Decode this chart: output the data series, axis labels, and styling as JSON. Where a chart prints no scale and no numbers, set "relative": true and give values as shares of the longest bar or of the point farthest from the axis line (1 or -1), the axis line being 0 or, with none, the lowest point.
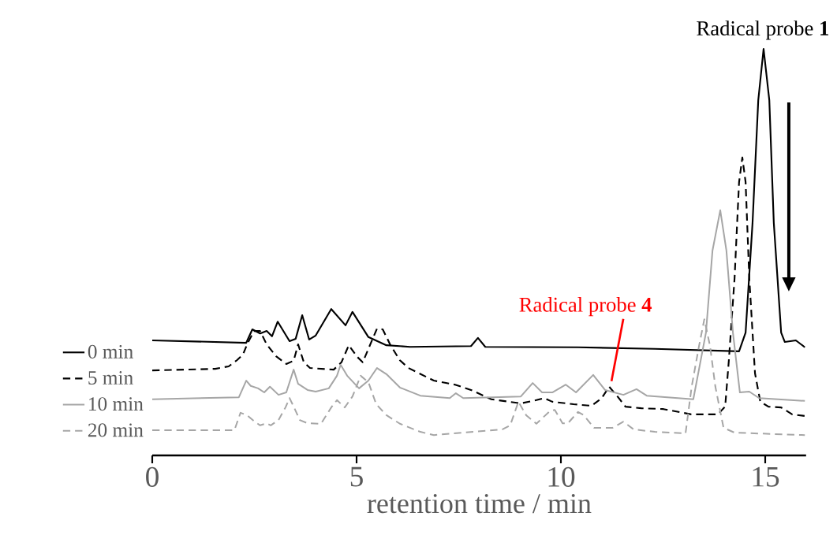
{
  "chart_data": {
    "type": "line",
    "relative": true,
    "xlabel": "retention time / min",
    "xlim": [
      0,
      16
    ],
    "xticks": [
      0,
      5,
      10,
      15
    ],
    "legend": "left",
    "annotations": [
      {
        "text": "Radical probe **1**",
        "x": 14.96,
        "y": 1
      },
      {
        "text": "Radical probe **4**",
        "x": 11.18,
        "y": 0.169
      }
    ],
    "series": [
      {
        "name": "0 min",
        "color": "#000000",
        "line_style": "solid",
        "x": [
          0,
          2.3,
          2.45,
          2.64,
          2.8,
          2.93,
          3.07,
          3.36,
          3.51,
          3.67,
          3.84,
          4.0,
          4.38,
          4.73,
          4.9,
          5.29,
          5.73,
          6.31,
          7.8,
          7.97,
          8.15,
          10.42,
          12.3,
          14.36,
          14.52,
          14.69,
          14.83,
          14.96,
          15.1,
          15.21,
          15.39,
          15.48,
          15.75,
          15.97
        ],
        "values": [
          0.283,
          0.277,
          0.31,
          0.3,
          0.306,
          0.293,
          0.329,
          0.281,
          0.287,
          0.345,
          0.285,
          0.295,
          0.36,
          0.32,
          0.353,
          0.291,
          0.271,
          0.267,
          0.269,
          0.289,
          0.267,
          0.266,
          0.262,
          0.256,
          0.302,
          0.572,
          0.874,
          1,
          0.874,
          0.572,
          0.302,
          0.279,
          0.283,
          0.266
        ]
      },
      {
        "name": "5 min",
        "color": "#000000",
        "line_style": "dashed",
        "x": [
          0,
          1.54,
          1.87,
          2.07,
          2.22,
          2.32,
          2.49,
          2.64,
          2.8,
          3.03,
          3.28,
          3.46,
          3.57,
          3.71,
          3.86,
          4.44,
          4.63,
          4.81,
          5.02,
          5.15,
          5.31,
          5.5,
          5.64,
          5.83,
          6.06,
          6.27,
          6.89,
          7.41,
          7.8,
          8.3,
          9.02,
          9.4,
          9.59,
          9.79,
          10.31,
          10.75,
          11.0,
          11.18,
          11.37,
          11.58,
          11.97,
          12.51,
          13.19,
          13.84,
          14.02,
          14.11,
          14.25,
          14.36,
          14.44,
          14.52,
          14.61,
          14.75,
          14.88,
          15.08,
          15.39,
          15.66,
          15.97
        ],
        "values": [
          0.209,
          0.213,
          0.219,
          0.234,
          0.248,
          0.273,
          0.306,
          0.306,
          0.273,
          0.244,
          0.225,
          0.233,
          0.273,
          0.229,
          0.215,
          0.211,
          0.229,
          0.271,
          0.242,
          0.229,
          0.267,
          0.312,
          0.31,
          0.271,
          0.234,
          0.215,
          0.184,
          0.174,
          0.161,
          0.138,
          0.128,
          0.136,
          0.141,
          0.132,
          0.126,
          0.122,
          0.141,
          0.169,
          0.147,
          0.12,
          0.116,
          0.114,
          0.101,
          0.101,
          0.12,
          0.234,
          0.436,
          0.672,
          0.733,
          0.672,
          0.436,
          0.202,
          0.132,
          0.12,
          0.118,
          0.101,
          0.097
        ]
      },
      {
        "name": "10 min",
        "color": "#a6a6a6",
        "line_style": "solid",
        "x": [
          0,
          2.12,
          2.3,
          2.41,
          2.59,
          2.74,
          2.88,
          3.09,
          3.28,
          3.46,
          3.57,
          3.8,
          4.0,
          4.32,
          4.52,
          4.61,
          4.77,
          5.06,
          5.29,
          5.5,
          5.73,
          6.06,
          6.56,
          7.28,
          7.43,
          7.61,
          9.02,
          9.31,
          9.54,
          9.79,
          10.12,
          10.37,
          10.79,
          11.08,
          11.53,
          11.85,
          12.1,
          13.24,
          13.55,
          13.71,
          13.9,
          14.05,
          14.21,
          14.38,
          14.61,
          14.85,
          15.97
        ],
        "values": [
          0.138,
          0.143,
          0.184,
          0.171,
          0.165,
          0.155,
          0.169,
          0.149,
          0.155,
          0.211,
          0.176,
          0.161,
          0.157,
          0.165,
          0.196,
          0.223,
          0.196,
          0.165,
          0.184,
          0.215,
          0.2,
          0.167,
          0.147,
          0.141,
          0.153,
          0.141,
          0.145,
          0.178,
          0.155,
          0.155,
          0.174,
          0.155,
          0.198,
          0.161,
          0.149,
          0.163,
          0.147,
          0.138,
          0.302,
          0.504,
          0.603,
          0.504,
          0.302,
          0.155,
          0.157,
          0.141,
          0.134
        ]
      },
      {
        "name": "20 min",
        "color": "#a6a6a6",
        "line_style": "dashed",
        "x": [
          0,
          2.01,
          2.16,
          2.32,
          2.51,
          2.64,
          2.8,
          2.9,
          3.09,
          3.26,
          3.36,
          3.47,
          3.61,
          3.8,
          4.13,
          4.38,
          4.52,
          4.71,
          4.9,
          5.1,
          5.29,
          5.48,
          5.73,
          6.06,
          6.56,
          6.89,
          7.86,
          8.57,
          8.76,
          8.96,
          9.15,
          9.4,
          9.73,
          9.85,
          10.04,
          10.17,
          10.42,
          10.56,
          10.81,
          11.27,
          11.53,
          11.78,
          12.3,
          13.05,
          13.2,
          13.38,
          13.51,
          13.65,
          13.78,
          13.98,
          14.25,
          15.97
        ],
        "values": [
          0.062,
          0.062,
          0.105,
          0.099,
          0.083,
          0.074,
          0.079,
          0.074,
          0.087,
          0.118,
          0.141,
          0.118,
          0.087,
          0.079,
          0.078,
          0.118,
          0.136,
          0.118,
          0.145,
          0.196,
          0.18,
          0.126,
          0.099,
          0.078,
          0.058,
          0.05,
          0.058,
          0.064,
          0.074,
          0.132,
          0.099,
          0.078,
          0.109,
          0.112,
          0.079,
          0.079,
          0.107,
          0.099,
          0.068,
          0.068,
          0.083,
          0.064,
          0.058,
          0.054,
          0.169,
          0.269,
          0.335,
          0.269,
          0.169,
          0.068,
          0.056,
          0.05
        ]
      }
    ]
  }
}
